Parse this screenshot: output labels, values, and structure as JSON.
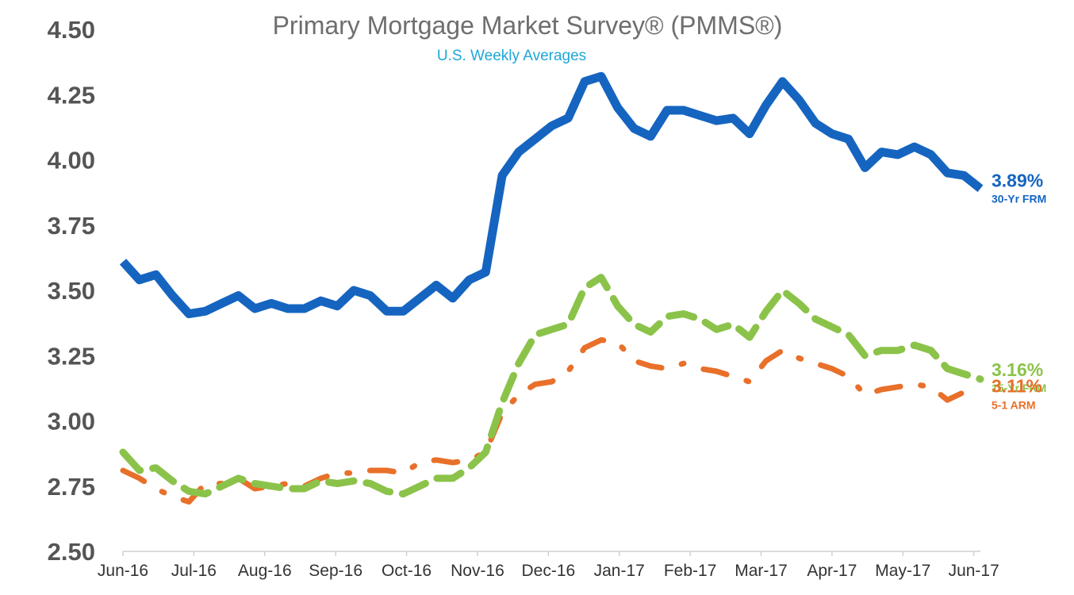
{
  "chart_data": {
    "type": "line",
    "title": "Primary Mortgage Market Survey® (PMMS®)",
    "subtitle": "U.S. Weekly Averages",
    "ylim": [
      2.5,
      4.5
    ],
    "y_ticks": [
      "4.50",
      "4.25",
      "4.00",
      "3.75",
      "3.50",
      "3.25",
      "3.00",
      "2.75",
      "2.50"
    ],
    "y_tick_values": [
      4.5,
      4.25,
      4.0,
      3.75,
      3.5,
      3.25,
      3.0,
      2.75,
      2.5
    ],
    "x_tick_labels": [
      "Jun-16",
      "Jul-16",
      "Aug-16",
      "Sep-16",
      "Oct-16",
      "Nov-16",
      "Dec-16",
      "Jan-17",
      "Feb-17",
      "Mar-17",
      "Apr-17",
      "May-17",
      "Jun-17"
    ],
    "x_tick_weeks": [
      0,
      4.3,
      8.6,
      12.9,
      17.2,
      21.5,
      25.8,
      30.1,
      34.4,
      38.7,
      43.0,
      47.3,
      51.6
    ],
    "grid": false,
    "legend": "end-labels",
    "series": [
      {
        "name": "30-Yr FRM",
        "end_value_label": "3.89%",
        "color": "#1565c0",
        "dash": "solid",
        "values": [
          3.61,
          3.54,
          3.56,
          3.48,
          3.41,
          3.42,
          3.45,
          3.48,
          3.43,
          3.45,
          3.43,
          3.43,
          3.46,
          3.44,
          3.5,
          3.48,
          3.42,
          3.42,
          3.47,
          3.52,
          3.47,
          3.54,
          3.57,
          3.94,
          4.03,
          4.08,
          4.13,
          4.16,
          4.3,
          4.32,
          4.2,
          4.12,
          4.09,
          4.19,
          4.19,
          4.17,
          4.15,
          4.16,
          4.1,
          4.21,
          4.3,
          4.23,
          4.14,
          4.1,
          4.08,
          3.97,
          4.03,
          4.02,
          4.05,
          4.02,
          3.95,
          3.94,
          3.89
        ]
      },
      {
        "name": "15-Yr FRM",
        "end_value_label": "3.16%",
        "color": "#8bc34a",
        "dash": "long-dash",
        "values": [
          2.88,
          2.81,
          2.82,
          2.77,
          2.73,
          2.72,
          2.75,
          2.78,
          2.76,
          2.75,
          2.74,
          2.74,
          2.77,
          2.76,
          2.77,
          2.76,
          2.73,
          2.72,
          2.75,
          2.78,
          2.78,
          2.82,
          2.88,
          3.07,
          3.22,
          3.33,
          3.35,
          3.37,
          3.51,
          3.55,
          3.44,
          3.37,
          3.34,
          3.4,
          3.41,
          3.39,
          3.35,
          3.37,
          3.32,
          3.42,
          3.5,
          3.45,
          3.39,
          3.36,
          3.33,
          3.25,
          3.27,
          3.27,
          3.29,
          3.27,
          3.2,
          3.18,
          3.16
        ]
      },
      {
        "name": "5-1 ARM",
        "end_value_label": "3.11%",
        "color": "#e8702a",
        "dash": "dash-dot",
        "values": [
          2.81,
          2.78,
          2.74,
          2.71,
          2.69,
          2.76,
          2.76,
          2.78,
          2.74,
          2.75,
          2.76,
          2.75,
          2.78,
          2.8,
          2.8,
          2.81,
          2.81,
          2.8,
          2.84,
          2.85,
          2.84,
          2.85,
          2.88,
          3.03,
          3.1,
          3.14,
          3.15,
          3.19,
          3.28,
          3.31,
          3.3,
          3.23,
          3.21,
          3.2,
          3.22,
          3.2,
          3.19,
          3.17,
          3.15,
          3.23,
          3.27,
          3.24,
          3.22,
          3.2,
          3.17,
          3.1,
          3.12,
          3.13,
          3.14,
          3.13,
          3.08,
          3.11,
          3.11
        ]
      }
    ]
  }
}
